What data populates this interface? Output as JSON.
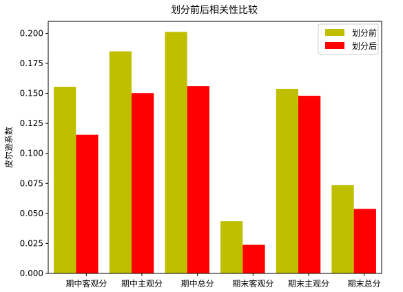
{
  "chart_data": {
    "type": "bar",
    "title": "划分前后相关性比较",
    "xlabel": "",
    "ylabel": "皮尔逊系数",
    "categories": [
      "期中客观分",
      "期中主观分",
      "期中总分",
      "期末客观分",
      "期末主观分",
      "期末总分"
    ],
    "series": [
      {
        "name": "划分前",
        "color": "#bfbf00",
        "values": [
          0.1555,
          0.185,
          0.2012,
          0.0435,
          0.1538,
          0.0735
        ]
      },
      {
        "name": "划分后",
        "color": "#ff0000",
        "values": [
          0.1155,
          0.1502,
          0.156,
          0.0238,
          0.148,
          0.0538
        ]
      }
    ],
    "ylim": [
      0,
      0.21
    ],
    "yticks": [
      "0.000",
      "0.025",
      "0.050",
      "0.075",
      "0.100",
      "0.125",
      "0.150",
      "0.175",
      "0.200"
    ],
    "grid": false,
    "legend": "top-right"
  }
}
